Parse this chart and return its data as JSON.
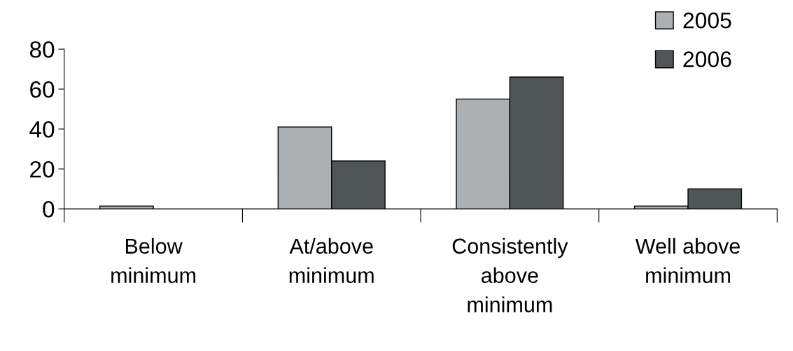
{
  "chart_data": {
    "type": "bar",
    "categories": [
      "Below\nminimum",
      "At/above\nminimum",
      "Consistently\nabove\nminimum",
      "Well above\nminimum"
    ],
    "series": [
      {
        "name": "2005",
        "color": "#adb0b3",
        "values": [
          1.4,
          41,
          55,
          1.4
        ]
      },
      {
        "name": "2006",
        "color": "#505558",
        "values": [
          null,
          24,
          66,
          10
        ]
      }
    ],
    "ylim": [
      0,
      80
    ],
    "yticks": [
      0,
      20,
      40,
      60,
      80
    ],
    "grid": false,
    "legend": "top right"
  }
}
